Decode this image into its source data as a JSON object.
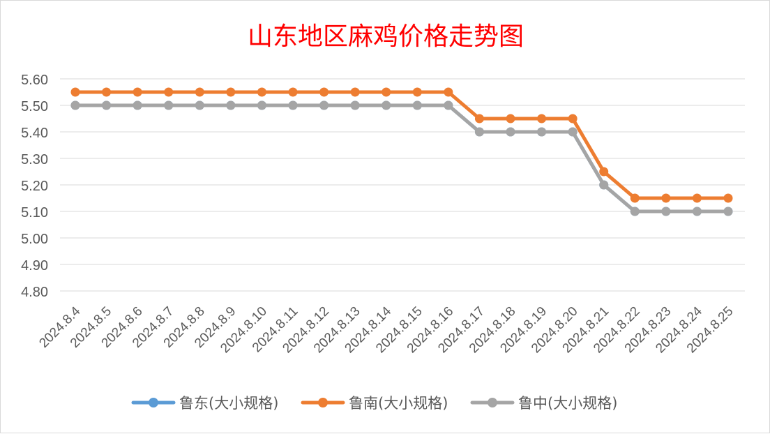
{
  "chart_data": {
    "type": "line",
    "title": "山东地区麻鸡价格走势图",
    "xlabel": "",
    "ylabel": "",
    "ylim": [
      4.8,
      5.6
    ],
    "y_ticks": [
      "5.60",
      "5.50",
      "5.40",
      "5.30",
      "5.20",
      "5.10",
      "5.00",
      "4.90",
      "4.80"
    ],
    "grid": true,
    "legend_position": "bottom",
    "categories": [
      "2024.8.4",
      "2024.8.5",
      "2024.8.6",
      "2024.8.7",
      "2024.8.8",
      "2024.8.9",
      "2024.8.10",
      "2024.8.11",
      "2024.8.12",
      "2024.8.13",
      "2024.8.14",
      "2024.8.15",
      "2024.8.16",
      "2024.8.17",
      "2024.8.18",
      "2024.8.19",
      "2024.8.20",
      "2024.8.21",
      "2024.8.22",
      "2024.8.23",
      "2024.8.24",
      "2024.8.25"
    ],
    "series": [
      {
        "name": "鲁东(大小规格)",
        "color": "#5b9bd5",
        "values": [
          5.5,
          5.5,
          5.5,
          5.5,
          5.5,
          5.5,
          5.5,
          5.5,
          5.5,
          5.5,
          5.5,
          5.5,
          5.5,
          5.4,
          5.4,
          5.4,
          5.4,
          5.2,
          5.1,
          5.1,
          5.1,
          5.1
        ]
      },
      {
        "name": "鲁南(大小规格)",
        "color": "#ed7d31",
        "values": [
          5.55,
          5.55,
          5.55,
          5.55,
          5.55,
          5.55,
          5.55,
          5.55,
          5.55,
          5.55,
          5.55,
          5.55,
          5.55,
          5.45,
          5.45,
          5.45,
          5.45,
          5.25,
          5.15,
          5.15,
          5.15,
          5.15
        ]
      },
      {
        "name": "鲁中(大小规格)",
        "color": "#a5a5a5",
        "values": [
          5.5,
          5.5,
          5.5,
          5.5,
          5.5,
          5.5,
          5.5,
          5.5,
          5.5,
          5.5,
          5.5,
          5.5,
          5.5,
          5.4,
          5.4,
          5.4,
          5.4,
          5.2,
          5.1,
          5.1,
          5.1,
          5.1
        ]
      }
    ],
    "colors": {
      "title": "#ff0000",
      "grid": "#d9d9d9",
      "tick_text": "#595959"
    }
  }
}
